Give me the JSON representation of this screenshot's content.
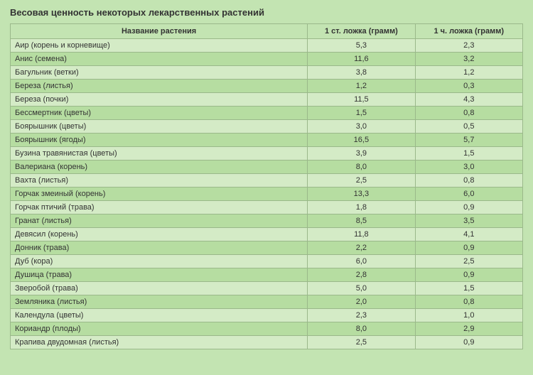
{
  "title": "Весовая ценность некоторых лекарственных растений",
  "columns": [
    "Название растения",
    "1 ст. ложка (грамм)",
    "1 ч. ложка (грамм)"
  ],
  "rows": [
    [
      "Аир (корень и корневище)",
      "5,3",
      "2,3"
    ],
    [
      "Анис (семена)",
      "11,6",
      "3,2"
    ],
    [
      "Багульник (ветки)",
      "3,8",
      "1,2"
    ],
    [
      "Береза (листья)",
      "1,2",
      "0,3"
    ],
    [
      "Береза (почки)",
      "11,5",
      "4,3"
    ],
    [
      "Бессмертник (цветы)",
      "1,5",
      "0,8"
    ],
    [
      "Боярышник (цветы)",
      "3,0",
      "0,5"
    ],
    [
      "Боярышник (ягоды)",
      "16,5",
      "5,7"
    ],
    [
      "Бузина травянистая (цветы)",
      "3,9",
      "1,5"
    ],
    [
      "Валериана (корень)",
      "8,0",
      "3,0"
    ],
    [
      "Вахта (листья)",
      "2,5",
      "0,8"
    ],
    [
      "Горчак змеиный (корень)",
      "13,3",
      "6,0"
    ],
    [
      "Горчак птичий (трава)",
      "1,8",
      "0,9"
    ],
    [
      "Гранат (листья)",
      "8,5",
      "3,5"
    ],
    [
      "Девясил (корень)",
      "11,8",
      "4,1"
    ],
    [
      "Донник (трава)",
      "2,2",
      "0,9"
    ],
    [
      "Дуб (кора)",
      "6,0",
      "2,5"
    ],
    [
      "Душица (трава)",
      "2,8",
      "0,9"
    ],
    [
      "Зверобой (трава)",
      "5,0",
      "1,5"
    ],
    [
      "Земляника (листья)",
      "2,0",
      "0,8"
    ],
    [
      "Календула (цветы)",
      "2,3",
      "1,0"
    ],
    [
      "Кориандр (плоды)",
      "8,0",
      "2,9"
    ],
    [
      "Крапива двудомная (листья)",
      "2,5",
      "0,9"
    ]
  ]
}
